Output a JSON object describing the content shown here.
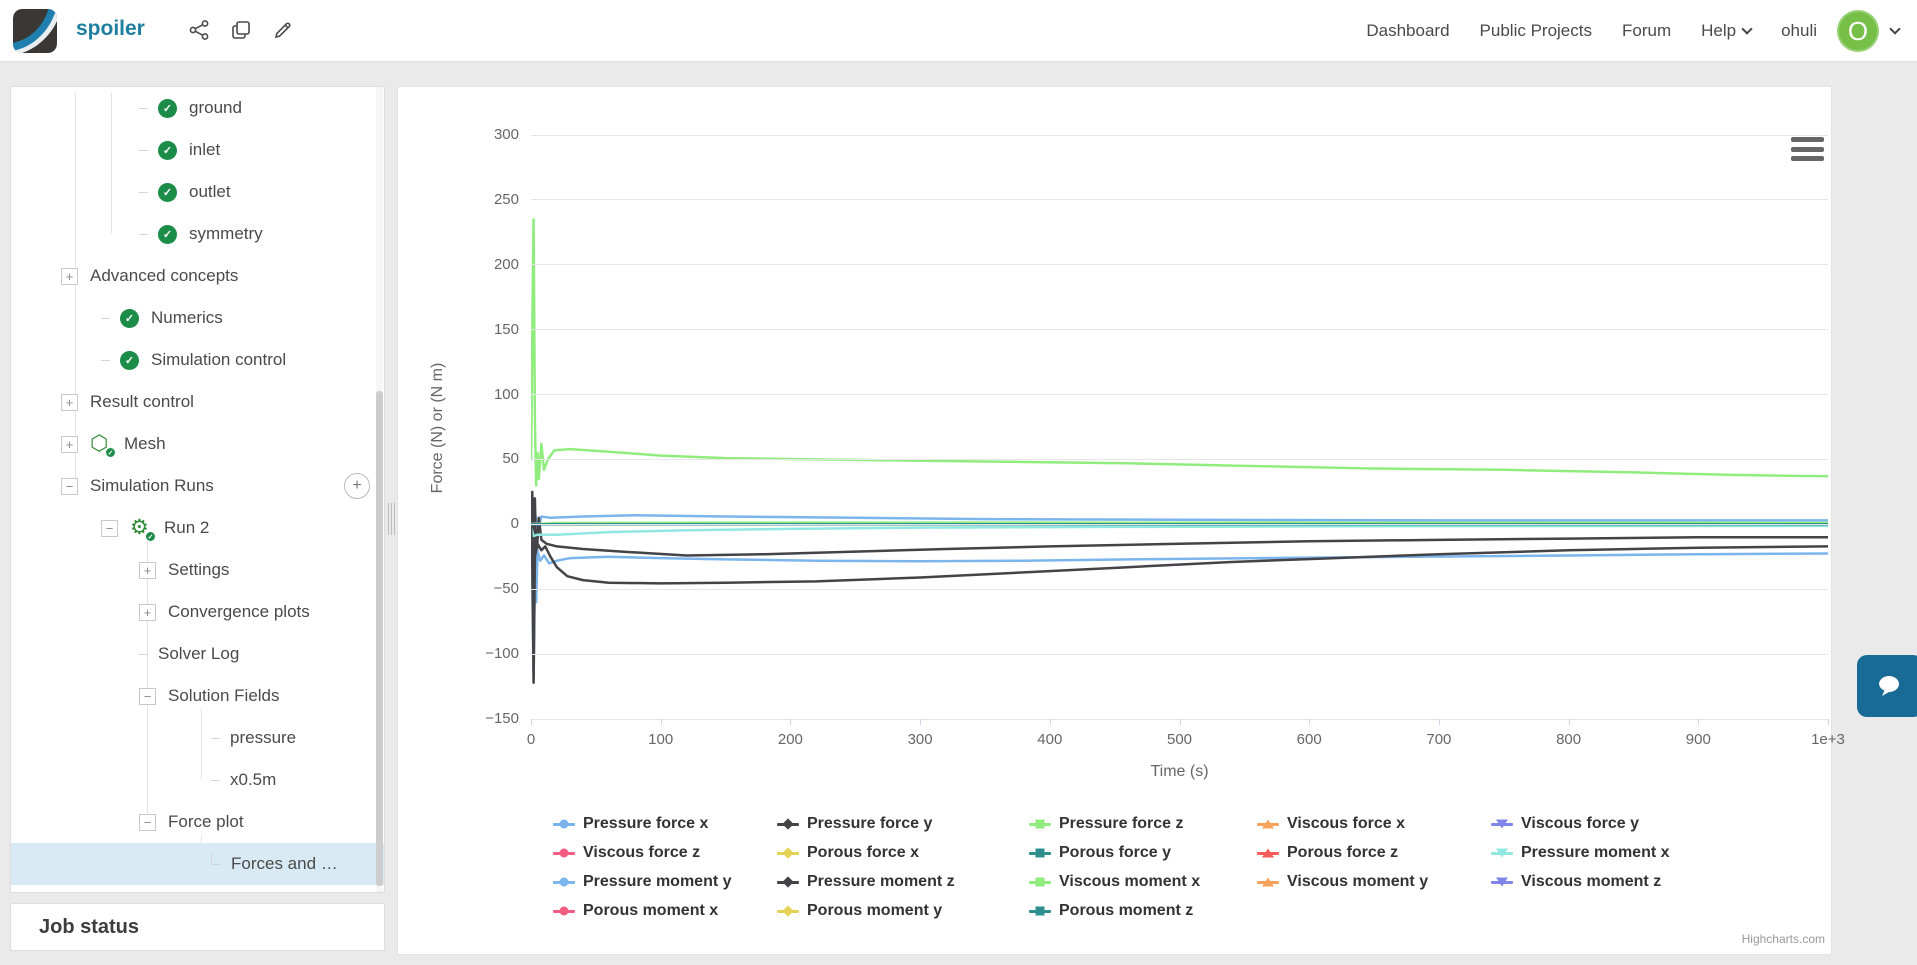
{
  "header": {
    "project_title": "spoiler",
    "action_icons": [
      "share-icon",
      "duplicate-icon",
      "edit-icon"
    ],
    "nav": [
      "Dashboard",
      "Public Projects",
      "Forum",
      "Help",
      "ohuli"
    ],
    "avatar_letter": "O",
    "title_color": "#1e7ea1",
    "avatar_color": "#76c047"
  },
  "sidebar": {
    "tree": [
      {
        "label": "ground",
        "depth": 3,
        "connector": "dash",
        "icon": "check-circle"
      },
      {
        "label": "inlet",
        "depth": 3,
        "connector": "dash",
        "icon": "check-circle"
      },
      {
        "label": "outlet",
        "depth": 3,
        "connector": "dash",
        "icon": "check-circle"
      },
      {
        "label": "symmetry",
        "depth": 3,
        "connector": "dash",
        "icon": "check-circle"
      },
      {
        "label": "Advanced concepts",
        "depth": 1,
        "expander": "plus"
      },
      {
        "label": "Numerics",
        "depth": 2,
        "connector": "dash",
        "icon": "check-circle"
      },
      {
        "label": "Simulation control",
        "depth": 2,
        "connector": "dash",
        "icon": "check-circle"
      },
      {
        "label": "Result control",
        "depth": 1,
        "expander": "plus"
      },
      {
        "label": "Mesh",
        "depth": 1,
        "expander": "plus",
        "icon": "mesh"
      },
      {
        "label": "Simulation Runs",
        "depth": 1,
        "expander": "minus",
        "add_button": true
      },
      {
        "label": "Run 2",
        "depth": 2,
        "expander": "minus",
        "icon": "gear"
      },
      {
        "label": "Settings",
        "depth": 3,
        "expander": "plus"
      },
      {
        "label": "Convergence plots",
        "depth": 3,
        "expander": "plus"
      },
      {
        "label": "Solver Log",
        "depth": 3,
        "connector": "dash"
      },
      {
        "label": "Solution Fields",
        "depth": 3,
        "expander": "minus"
      },
      {
        "label": "pressure",
        "depth": 4,
        "connector": "dash"
      },
      {
        "label": "x0.5m",
        "depth": 4,
        "connector": "dash"
      },
      {
        "label": "Force plot",
        "depth": 3,
        "expander": "minus"
      },
      {
        "label": "Forces and …",
        "depth": 4,
        "connector": "corner",
        "selected": true
      }
    ],
    "job_status_label": "Job status"
  },
  "chart_data": {
    "type": "line",
    "xlabel": "Time (s)",
    "ylabel": "Force (N) or (N m)",
    "xlim": [
      0,
      1000
    ],
    "ylim": [
      -150,
      300
    ],
    "grid": "horizontal",
    "legend_position": "bottom",
    "credit": "Highcharts.com",
    "y_ticks": [
      {
        "v": 300,
        "label": "300"
      },
      {
        "v": 250,
        "label": "250"
      },
      {
        "v": 200,
        "label": "200"
      },
      {
        "v": 150,
        "label": "150"
      },
      {
        "v": 100,
        "label": "100"
      },
      {
        "v": 50,
        "label": "50"
      },
      {
        "v": 0,
        "label": "0"
      },
      {
        "v": -50,
        "label": "−50"
      },
      {
        "v": -100,
        "label": "−100"
      },
      {
        "v": -150,
        "label": "−150"
      }
    ],
    "x_ticks": [
      {
        "v": 0,
        "label": "0"
      },
      {
        "v": 100,
        "label": "100"
      },
      {
        "v": 200,
        "label": "200"
      },
      {
        "v": 300,
        "label": "300"
      },
      {
        "v": 400,
        "label": "400"
      },
      {
        "v": 500,
        "label": "500"
      },
      {
        "v": 600,
        "label": "600"
      },
      {
        "v": 700,
        "label": "700"
      },
      {
        "v": 800,
        "label": "800"
      },
      {
        "v": 900,
        "label": "900"
      },
      {
        "v": 1000,
        "label": "1e+3"
      }
    ],
    "series": [
      {
        "name": "Pressure force x",
        "color": "#7cb5ec",
        "marker": "circle",
        "points": [
          [
            0,
            0
          ],
          [
            1,
            20
          ],
          [
            2,
            -35
          ],
          [
            3,
            10
          ],
          [
            5,
            -5
          ],
          [
            8,
            6
          ],
          [
            15,
            5
          ],
          [
            40,
            6
          ],
          [
            80,
            7
          ],
          [
            150,
            6
          ],
          [
            250,
            5
          ],
          [
            350,
            4
          ],
          [
            500,
            3.5
          ],
          [
            700,
            3
          ],
          [
            850,
            3
          ],
          [
            1000,
            3
          ]
        ]
      },
      {
        "name": "Pressure force y",
        "color": "#434348",
        "marker": "diamond",
        "points": [
          [
            0,
            0
          ],
          [
            1,
            25
          ],
          [
            2,
            -60
          ],
          [
            3,
            20
          ],
          [
            4,
            -30
          ],
          [
            6,
            5
          ],
          [
            8,
            -12
          ],
          [
            12,
            -15
          ],
          [
            20,
            -17
          ],
          [
            40,
            -19
          ],
          [
            70,
            -21
          ],
          [
            120,
            -24
          ],
          [
            180,
            -23
          ],
          [
            250,
            -21
          ],
          [
            320,
            -19
          ],
          [
            400,
            -17
          ],
          [
            500,
            -15
          ],
          [
            600,
            -13
          ],
          [
            700,
            -12
          ],
          [
            800,
            -11
          ],
          [
            900,
            -10
          ],
          [
            1000,
            -10
          ]
        ]
      },
      {
        "name": "Pressure force z",
        "color": "#90ed7d",
        "marker": "square",
        "points": [
          [
            0,
            50
          ],
          [
            1,
            150
          ],
          [
            2,
            235
          ],
          [
            3,
            80
          ],
          [
            4,
            30
          ],
          [
            5,
            55
          ],
          [
            6,
            35
          ],
          [
            8,
            62
          ],
          [
            10,
            42
          ],
          [
            13,
            50
          ],
          [
            18,
            57
          ],
          [
            30,
            58
          ],
          [
            60,
            56
          ],
          [
            100,
            53
          ],
          [
            150,
            51
          ],
          [
            220,
            50
          ],
          [
            300,
            49
          ],
          [
            380,
            48
          ],
          [
            460,
            47
          ],
          [
            550,
            45
          ],
          [
            650,
            43
          ],
          [
            750,
            42
          ],
          [
            850,
            40
          ],
          [
            930,
            38
          ],
          [
            1000,
            37
          ]
        ]
      },
      {
        "name": "Viscous force x",
        "color": "#f7a35c",
        "marker": "triangle",
        "points": [
          [
            0,
            0.5
          ],
          [
            1000,
            0.8
          ]
        ]
      },
      {
        "name": "Viscous force y",
        "color": "#8085e9",
        "marker": "triangle-down",
        "points": [
          [
            0,
            0.3
          ],
          [
            1000,
            0.4
          ]
        ]
      },
      {
        "name": "Viscous force z",
        "color": "#f15c80",
        "marker": "circle",
        "points": [
          [
            0,
            0.1
          ],
          [
            1000,
            0.2
          ]
        ]
      },
      {
        "name": "Porous force x",
        "color": "#e4d354",
        "marker": "diamond",
        "points": [
          [
            0,
            0
          ],
          [
            1000,
            0
          ]
        ]
      },
      {
        "name": "Porous force y",
        "color": "#2b908f",
        "marker": "square",
        "points": [
          [
            0,
            0
          ],
          [
            1000,
            0
          ]
        ]
      },
      {
        "name": "Porous force z",
        "color": "#f45b5b",
        "marker": "triangle",
        "points": [
          [
            0,
            0
          ],
          [
            1000,
            0
          ]
        ]
      },
      {
        "name": "Pressure moment x",
        "color": "#91e8e1",
        "marker": "triangle-down",
        "points": [
          [
            0,
            -2
          ],
          [
            2,
            -9
          ],
          [
            5,
            -8
          ],
          [
            20,
            -8
          ],
          [
            60,
            -6
          ],
          [
            120,
            -4.5
          ],
          [
            200,
            -3.5
          ],
          [
            300,
            -2.5
          ],
          [
            450,
            -2
          ],
          [
            650,
            -1.5
          ],
          [
            1000,
            -1.2
          ]
        ]
      },
      {
        "name": "Pressure moment y",
        "color": "#7cb5ec",
        "marker": "circle",
        "points": [
          [
            0,
            0
          ],
          [
            1,
            -40
          ],
          [
            2,
            -118
          ],
          [
            3,
            -30
          ],
          [
            4,
            -60
          ],
          [
            5,
            -20
          ],
          [
            7,
            -28
          ],
          [
            10,
            -24
          ],
          [
            14,
            -30
          ],
          [
            20,
            -28
          ],
          [
            30,
            -26
          ],
          [
            60,
            -25
          ],
          [
            100,
            -26
          ],
          [
            150,
            -27
          ],
          [
            220,
            -28
          ],
          [
            300,
            -28.5
          ],
          [
            380,
            -28
          ],
          [
            460,
            -27
          ],
          [
            560,
            -26
          ],
          [
            680,
            -25
          ],
          [
            800,
            -24
          ],
          [
            900,
            -23
          ],
          [
            1000,
            -22.5
          ]
        ]
      },
      {
        "name": "Pressure moment z",
        "color": "#434348",
        "marker": "diamond",
        "points": [
          [
            0,
            0
          ],
          [
            1,
            -30
          ],
          [
            2,
            -122
          ],
          [
            3,
            -25
          ],
          [
            5,
            -15
          ],
          [
            8,
            -20
          ],
          [
            11,
            -17
          ],
          [
            15,
            -25
          ],
          [
            20,
            -33
          ],
          [
            28,
            -40
          ],
          [
            40,
            -43
          ],
          [
            60,
            -45
          ],
          [
            100,
            -45.5
          ],
          [
            150,
            -45
          ],
          [
            220,
            -44
          ],
          [
            300,
            -41
          ],
          [
            380,
            -37
          ],
          [
            460,
            -33
          ],
          [
            540,
            -29
          ],
          [
            620,
            -26
          ],
          [
            700,
            -23
          ],
          [
            800,
            -20
          ],
          [
            900,
            -18
          ],
          [
            1000,
            -17
          ]
        ]
      },
      {
        "name": "Viscous moment x",
        "color": "#90ed7d",
        "marker": "square",
        "points": [
          [
            0,
            0
          ],
          [
            20,
            1
          ],
          [
            200,
            1.3
          ],
          [
            1000,
            1
          ]
        ]
      },
      {
        "name": "Viscous moment y",
        "color": "#f7a35c",
        "marker": "triangle",
        "points": [
          [
            0,
            0
          ],
          [
            1000,
            0
          ]
        ]
      },
      {
        "name": "Viscous moment z",
        "color": "#8085e9",
        "marker": "triangle-down",
        "points": [
          [
            0,
            0
          ],
          [
            1000,
            0
          ]
        ]
      },
      {
        "name": "Porous moment x",
        "color": "#f15c80",
        "marker": "circle",
        "points": [
          [
            0,
            0
          ],
          [
            1000,
            0
          ]
        ]
      },
      {
        "name": "Porous moment y",
        "color": "#e4d354",
        "marker": "diamond",
        "points": [
          [
            0,
            0
          ],
          [
            1000,
            0
          ]
        ]
      },
      {
        "name": "Porous moment z",
        "color": "#2b908f",
        "marker": "square",
        "points": [
          [
            0,
            0
          ],
          [
            1000,
            0
          ]
        ]
      }
    ]
  }
}
